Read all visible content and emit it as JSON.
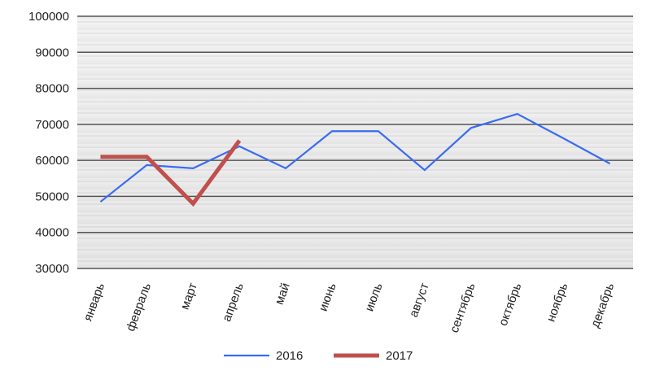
{
  "chart_data": {
    "type": "line",
    "categories": [
      "январь",
      "февраль",
      "март",
      "апрель",
      "май",
      "июнь",
      "июль",
      "август",
      "сентябрь",
      "октябрь",
      "ноябрь",
      "декабрь"
    ],
    "series": [
      {
        "name": "2016",
        "color": "#3b6cf0",
        "values": [
          48500,
          58700,
          57800,
          63900,
          57800,
          68100,
          68100,
          57300,
          69000,
          72900,
          66100,
          59100
        ]
      },
      {
        "name": "2017",
        "color": "#c0504d",
        "values": [
          61000,
          61000,
          48000,
          65500,
          null,
          null,
          null,
          null,
          null,
          null,
          null,
          null
        ]
      }
    ],
    "ylim": [
      30000,
      100000
    ],
    "yticks": [
      30000,
      40000,
      50000,
      60000,
      70000,
      80000,
      90000,
      100000
    ],
    "grid": true,
    "legend": "bottom"
  }
}
